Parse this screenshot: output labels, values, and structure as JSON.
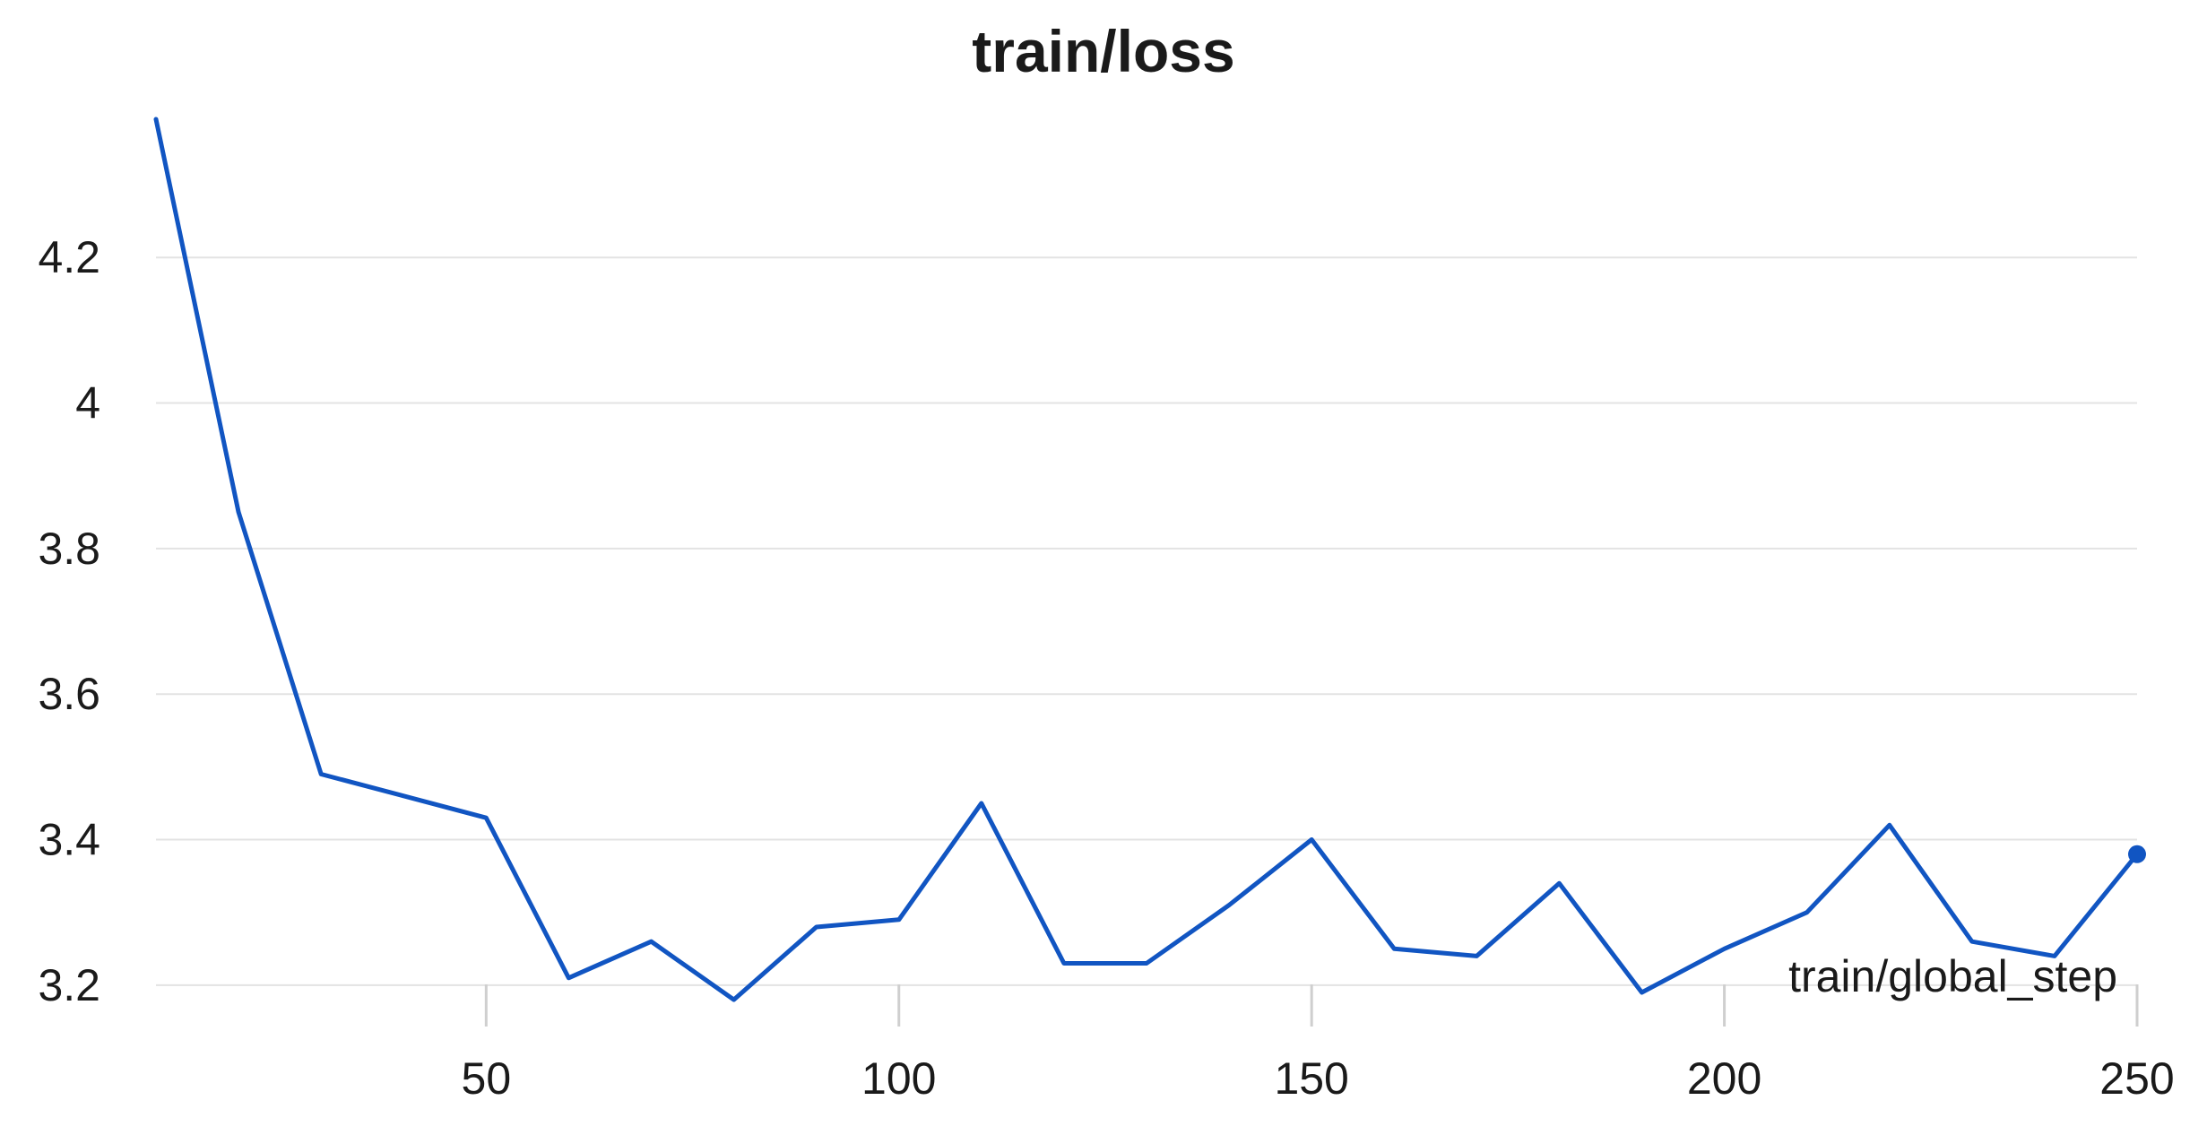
{
  "chart_data": {
    "type": "line",
    "title": "train/loss",
    "xlabel": "train/global_step",
    "ylabel": "",
    "xlim": [
      10,
      250
    ],
    "ylim": [
      3.19,
      4.39
    ],
    "x_ticks": [
      50,
      100,
      150,
      200,
      250
    ],
    "y_ticks": [
      3.2,
      3.4,
      3.6,
      3.8,
      4.0,
      4.2
    ],
    "x_tick_labels": [
      "50",
      "100",
      "150",
      "200",
      "250"
    ],
    "y_tick_labels": [
      "3.2",
      "3.4",
      "3.6",
      "3.8",
      "4",
      "4.2"
    ],
    "grid": "horizontal",
    "line_color": "#1155c2",
    "series": [
      {
        "x": [
          10,
          20,
          30,
          40,
          50,
          60,
          70,
          80,
          90,
          100,
          110,
          120,
          130,
          140,
          150,
          160,
          170,
          180,
          190,
          200,
          210,
          220,
          230,
          240,
          250
        ],
        "values": [
          4.39,
          3.85,
          3.49,
          3.46,
          3.43,
          3.21,
          3.26,
          3.18,
          3.28,
          3.29,
          3.45,
          3.23,
          3.23,
          3.31,
          3.4,
          3.25,
          3.24,
          3.34,
          3.19,
          3.25,
          3.3,
          3.42,
          3.26,
          3.24,
          3.38
        ]
      }
    ]
  }
}
